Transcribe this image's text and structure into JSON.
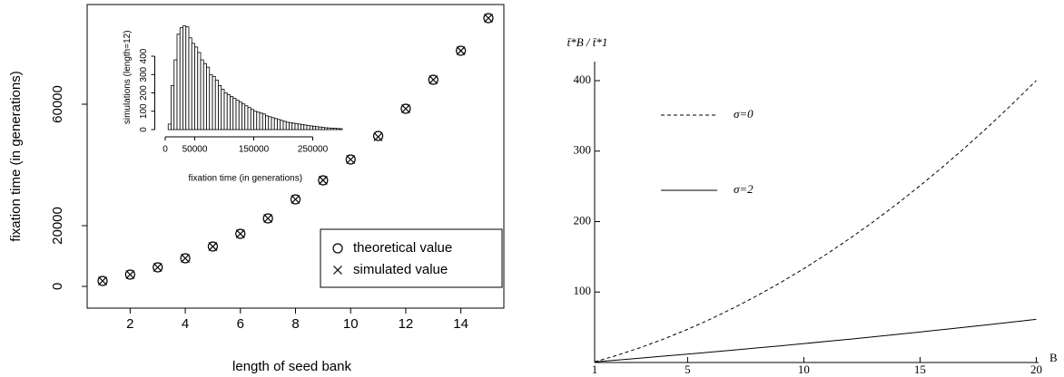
{
  "chart_data": [
    {
      "type": "scatter",
      "xlabel": "length of seed bank",
      "ylabel": "fixation time (in generations)",
      "x": [
        1,
        2,
        3,
        4,
        5,
        6,
        7,
        8,
        9,
        10,
        11,
        12,
        13,
        14,
        15
      ],
      "series": [
        {
          "name": "theoretical value",
          "marker": "circle",
          "color": "#000000",
          "values": [
            1791,
            3880,
            6270,
            9250,
            13130,
            17310,
            22390,
            28660,
            34930,
            41790,
            49550,
            58510,
            68060,
            77610,
            88360
          ]
        },
        {
          "name": "simulated value",
          "marker": "cross",
          "color": "#000000",
          "values": [
            1791,
            3880,
            6270,
            9250,
            13130,
            17310,
            22390,
            28660,
            34930,
            41790,
            49250,
            58510,
            68060,
            77610,
            88360
          ]
        }
      ],
      "xlim": [
        0.44,
        15.56
      ],
      "ylim": [
        -7164,
        92836
      ],
      "xticks": [
        2,
        4,
        6,
        8,
        10,
        12,
        14
      ],
      "yticks": [
        0,
        20000,
        60000
      ],
      "legend": "bottom-right"
    },
    {
      "type": "histogram",
      "xlabel": "fixation time (in generations)",
      "ylabel": "simulations (length=12)",
      "bins": [
        5000,
        10000,
        15000,
        20000,
        25000,
        30000,
        35000,
        40000,
        45000,
        50000,
        55000,
        60000,
        65000,
        70000,
        75000,
        80000,
        85000,
        90000,
        95000,
        100000,
        105000,
        110000,
        115000,
        120000,
        125000,
        130000,
        135000,
        140000,
        145000,
        150000,
        155000,
        160000,
        165000,
        170000,
        175000,
        180000,
        185000,
        190000,
        195000,
        200000,
        205000,
        210000,
        215000,
        220000,
        225000,
        230000,
        235000,
        240000,
        245000,
        250000,
        255000,
        260000,
        265000,
        270000,
        275000,
        280000,
        285000,
        290000,
        295000,
        300000
      ],
      "counts": [
        30,
        240,
        380,
        520,
        555,
        565,
        560,
        500,
        470,
        450,
        420,
        380,
        360,
        340,
        300,
        290,
        270,
        240,
        220,
        200,
        190,
        180,
        170,
        160,
        150,
        140,
        130,
        120,
        110,
        100,
        95,
        90,
        85,
        75,
        70,
        65,
        60,
        55,
        50,
        45,
        40,
        38,
        35,
        32,
        30,
        28,
        25,
        22,
        20,
        18,
        16,
        14,
        12,
        10,
        9,
        8,
        7,
        6,
        5
      ],
      "color": "#ffffff",
      "xlim": [
        -10000,
        300000
      ],
      "ylim": [
        0,
        570
      ],
      "xticks": [
        0,
        50000,
        150000,
        250000
      ],
      "yticks": [
        0,
        100,
        200,
        300,
        400
      ]
    },
    {
      "type": "line",
      "xlabel": "B",
      "ylabel": "t̄*B / t̄*1",
      "x": [
        1,
        2,
        3,
        4,
        5,
        6,
        7,
        8,
        9,
        10,
        11,
        12,
        13,
        14,
        15,
        16,
        17,
        18,
        19,
        20
      ],
      "series": [
        {
          "name": "σ=0",
          "dash": "dashed",
          "color": "#000000",
          "values": [
            1,
            10.6,
            21.5,
            33.7,
            47.1,
            61.8,
            77.8,
            95.0,
            113.4,
            133.2,
            154.2,
            176.5,
            200.0,
            224.8,
            250.9,
            278.2,
            306.8,
            336.6,
            367.8,
            400.2
          ]
        },
        {
          "name": "σ=2",
          "dash": "solid",
          "color": "#000000",
          "values": [
            1,
            3.6,
            6.3,
            9.1,
            11.9,
            14.8,
            17.7,
            20.7,
            23.7,
            26.8,
            30,
            33.2,
            36.5,
            39.9,
            43.3,
            46.8,
            50.3,
            53.9,
            57.5,
            61.2
          ]
        }
      ],
      "xlim": [
        1,
        20.1
      ],
      "ylim": [
        0,
        427
      ],
      "xticks": [
        1,
        5,
        10,
        15,
        20
      ],
      "yticks": [
        100,
        200,
        300,
        400
      ]
    }
  ]
}
